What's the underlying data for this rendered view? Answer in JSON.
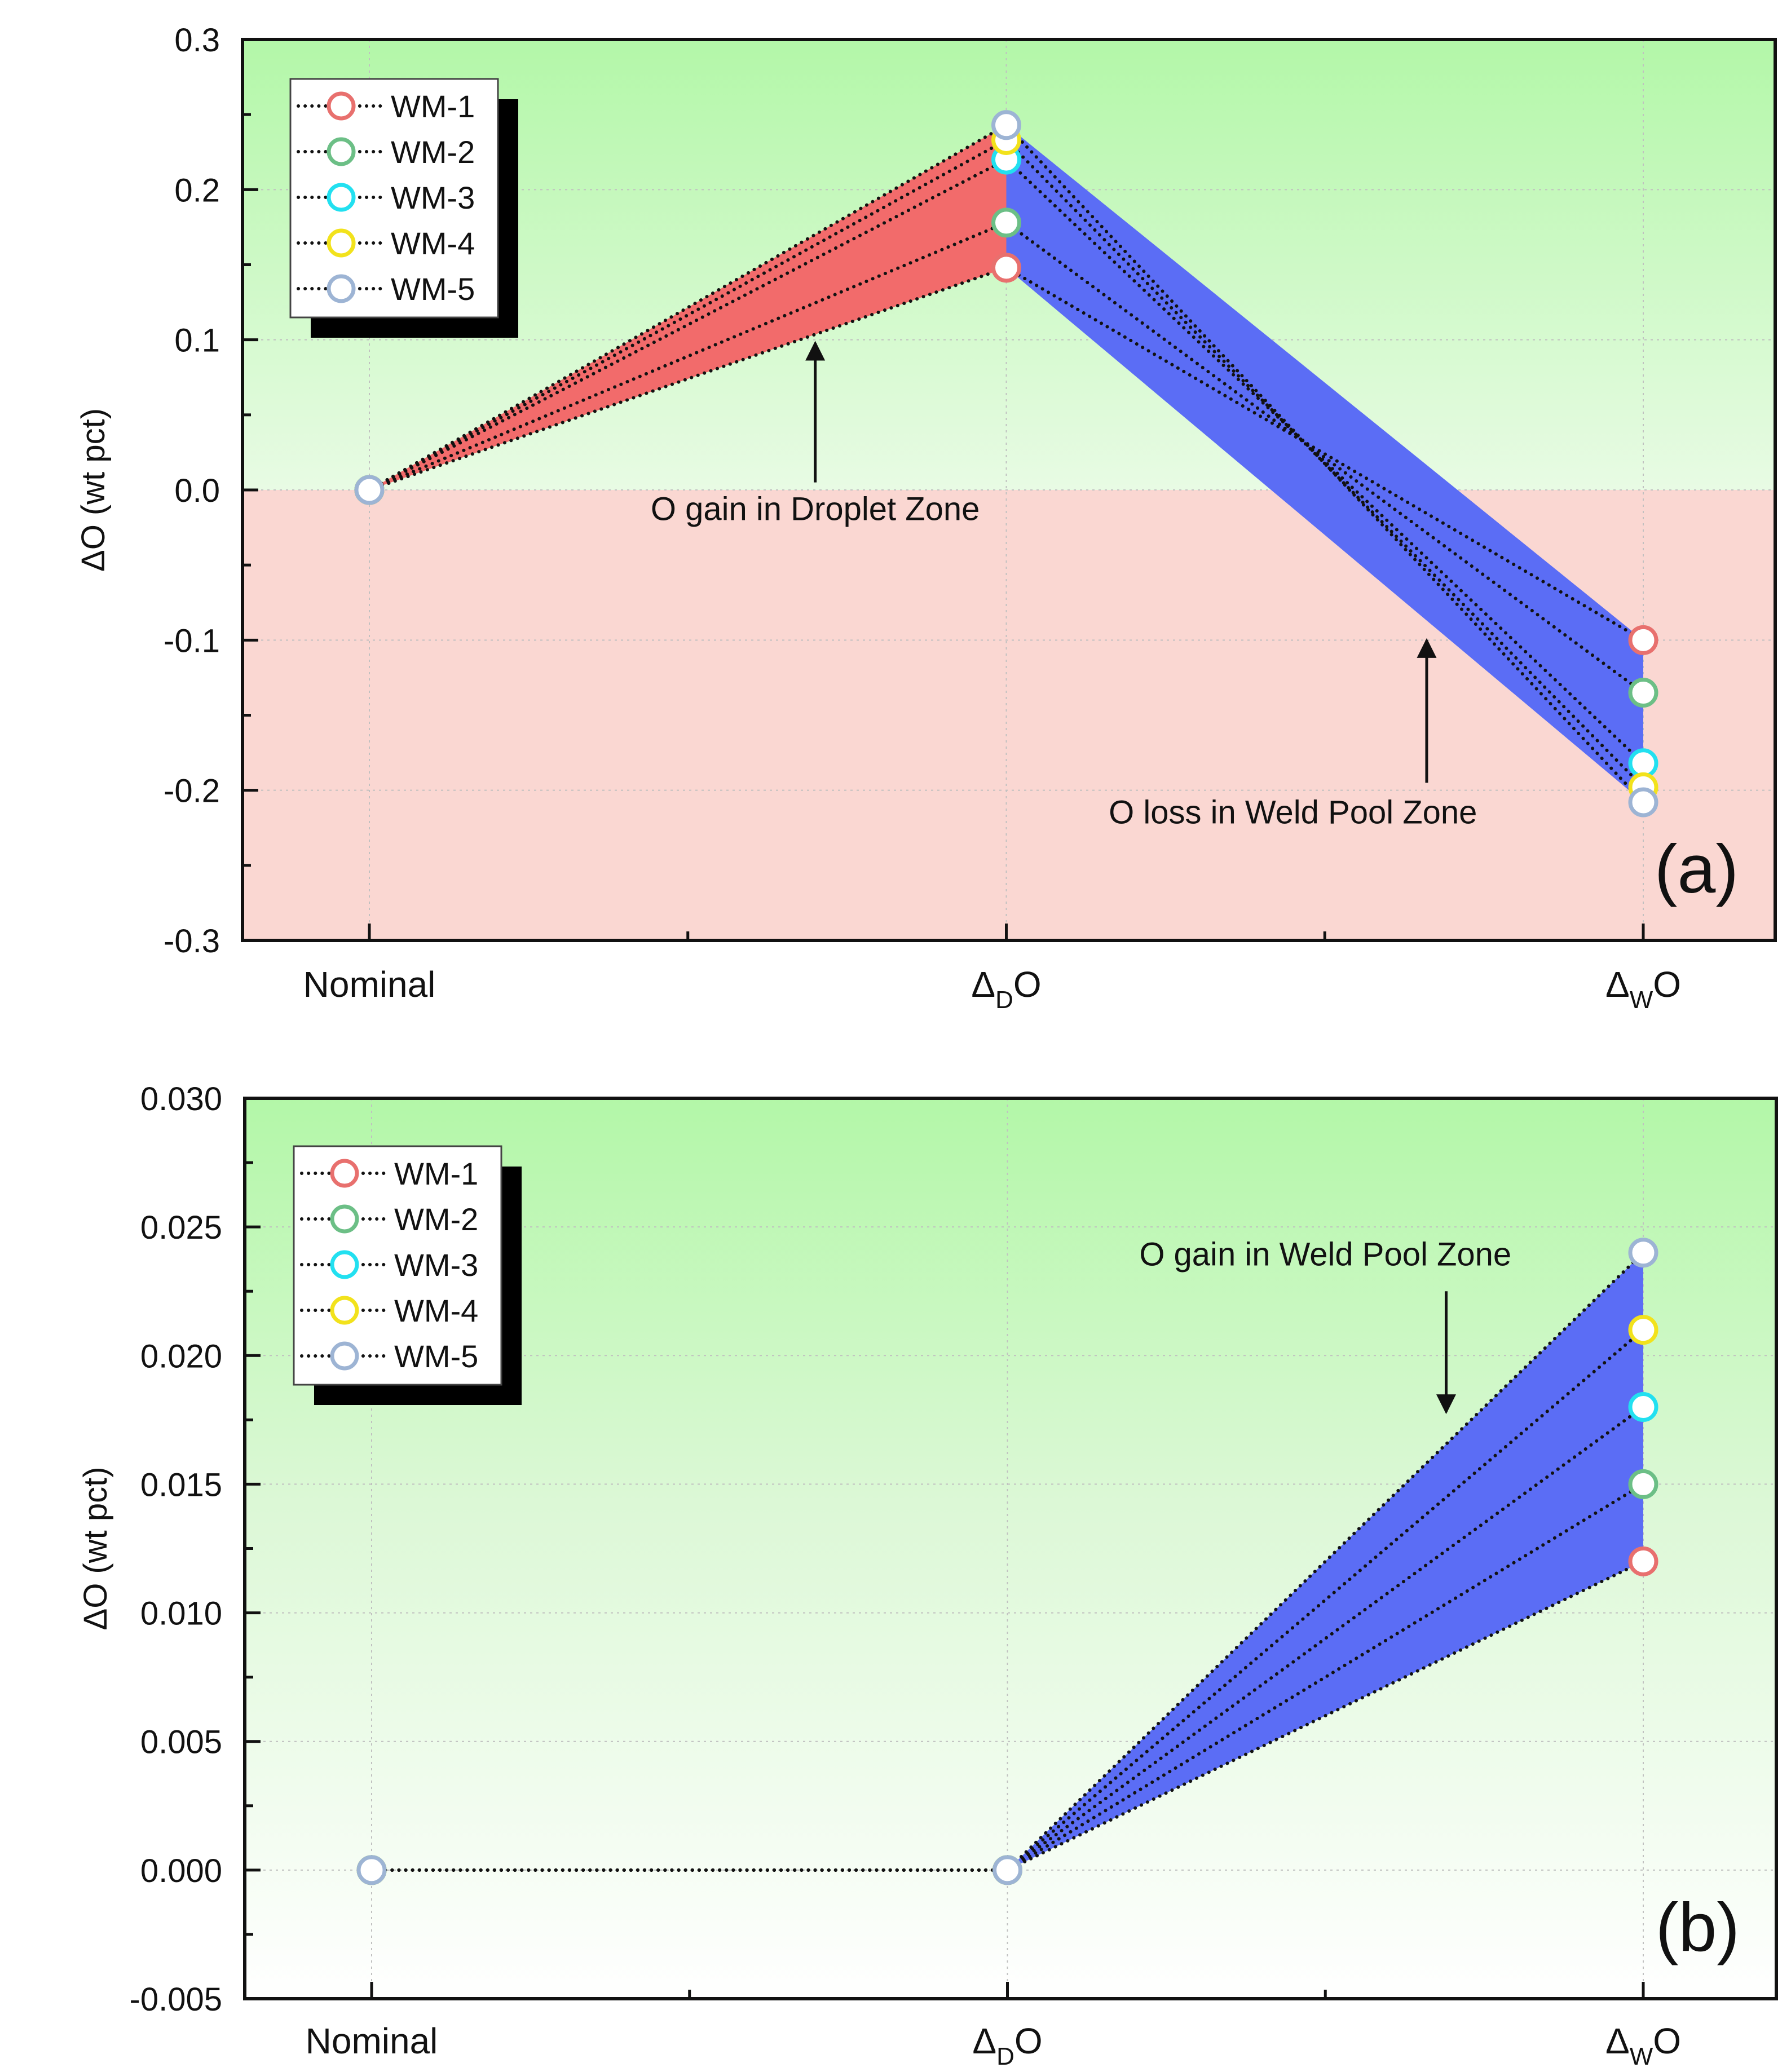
{
  "chart_data": [
    {
      "panel": "(a)",
      "type": "line",
      "x_categories": [
        {
          "main": "Nominal",
          "sub": "",
          "tail": ""
        },
        {
          "main": "Δ",
          "sub": "D",
          "tail": "O"
        },
        {
          "main": "Δ",
          "sub": "W",
          "tail": "O"
        }
      ],
      "ylabel": "ΔO (wt pct)",
      "ylim": [
        -0.3,
        0.3
      ],
      "yticks": [
        -0.3,
        -0.2,
        -0.1,
        0.0,
        0.1,
        0.2,
        0.3
      ],
      "ytick_labels": [
        "-0.3",
        "-0.2",
        "-0.1",
        "0.0",
        "0.1",
        "0.2",
        "0.3"
      ],
      "grid": true,
      "legend_position": "top-left",
      "series": [
        {
          "name": "WM-1",
          "color": "#e8706e",
          "values": [
            0.0,
            0.148,
            -0.1
          ]
        },
        {
          "name": "WM-2",
          "color": "#6cbf86",
          "values": [
            0.0,
            0.178,
            -0.135
          ]
        },
        {
          "name": "WM-3",
          "color": "#22e0f0",
          "values": [
            0.0,
            0.22,
            -0.182
          ]
        },
        {
          "name": "WM-4",
          "color": "#f2e21c",
          "values": [
            0.0,
            0.233,
            -0.198
          ]
        },
        {
          "name": "WM-5",
          "color": "#9db4d4",
          "values": [
            0.0,
            0.243,
            -0.208
          ]
        }
      ],
      "bands": [
        {
          "from": 0,
          "to": 1,
          "color": "#f26b6b"
        },
        {
          "from": 1,
          "to": 2,
          "color": "#5b6df5"
        }
      ],
      "annotations": [
        {
          "text": "O gain in Droplet Zone",
          "x": 0.7,
          "y": -0.02,
          "arrow_from": [
            0.7,
            0.005
          ],
          "arrow_to": [
            0.7,
            0.098
          ]
        },
        {
          "text": "O loss in Weld Pool Zone",
          "x": 1.45,
          "y": -0.222,
          "arrow_from": [
            1.66,
            -0.195
          ],
          "arrow_to": [
            1.66,
            -0.1
          ]
        }
      ]
    },
    {
      "panel": "(b)",
      "type": "line",
      "x_categories": [
        {
          "main": "Nominal",
          "sub": "",
          "tail": ""
        },
        {
          "main": "Δ",
          "sub": "D",
          "tail": "O"
        },
        {
          "main": "Δ",
          "sub": "W",
          "tail": "O"
        }
      ],
      "ylabel": "ΔO (wt pct)",
      "ylim": [
        -0.005,
        0.03
      ],
      "yticks": [
        -0.005,
        0.0,
        0.005,
        0.01,
        0.015,
        0.02,
        0.025,
        0.03
      ],
      "ytick_labels": [
        "-0.005",
        "0.000",
        "0.005",
        "0.010",
        "0.015",
        "0.020",
        "0.025",
        "0.030"
      ],
      "grid": true,
      "legend_position": "top-left",
      "series": [
        {
          "name": "WM-1",
          "color": "#e8706e",
          "values": [
            0.0,
            0.0,
            0.012
          ]
        },
        {
          "name": "WM-2",
          "color": "#6cbf86",
          "values": [
            0.0,
            0.0,
            0.015
          ]
        },
        {
          "name": "WM-3",
          "color": "#22e0f0",
          "values": [
            0.0,
            0.0,
            0.018
          ]
        },
        {
          "name": "WM-4",
          "color": "#f2e21c",
          "values": [
            0.0,
            0.0,
            0.021
          ]
        },
        {
          "name": "WM-5",
          "color": "#9db4d4",
          "values": [
            0.0,
            0.0,
            0.024
          ]
        }
      ],
      "bands": [
        {
          "from": 1,
          "to": 2,
          "color": "#5b6df5"
        }
      ],
      "annotations": [
        {
          "text": "O gain in Weld Pool Zone",
          "x": 1.5,
          "y": 0.0235,
          "arrow_from": [
            1.69,
            0.0225
          ],
          "arrow_to": [
            1.69,
            0.0178
          ]
        }
      ]
    }
  ]
}
